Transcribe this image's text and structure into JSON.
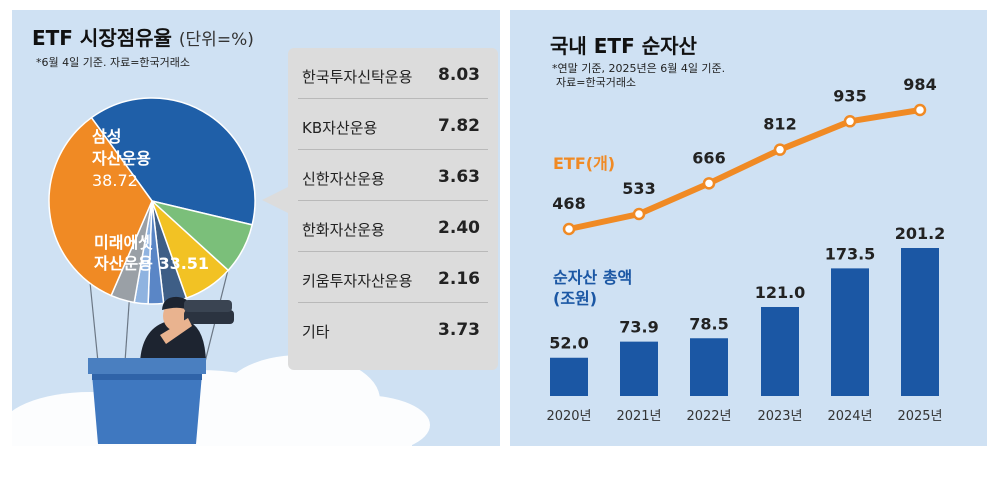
{
  "colors": {
    "background_left": "#cfe1f3",
    "background_right": "#cfe1f3",
    "samsung": "#1f5fa8",
    "mirae": "#f08a24",
    "korea_invest": "#7bbf7a",
    "kb": "#f2c224",
    "shinhan": "#3e5e86",
    "hanwha": "#5a86c6",
    "kiwoom": "#8fb3e0",
    "others": "#9aa0a6",
    "etf_line": "#f08a24",
    "bar": "#1b57a4",
    "line_label": "#f08a24",
    "bar_label": "#1b57a4",
    "list_bg": "#dcdcdc"
  },
  "left": {
    "title": "ETF 시장점유율",
    "unit": "(단위=%)",
    "note": "*6월 4일 기준. 자료=한국거래소"
  },
  "right": {
    "title": "국내 ETF 순자산",
    "note_line1": "*연말 기준, 2025년은 6월 4일 기준.",
    "note_line2": "자료=한국거래소",
    "line_series_label": "ETF(개)",
    "bar_series_label_1": "순자산 총액",
    "bar_series_label_2": "(조원)"
  },
  "chart_data": [
    {
      "type": "pie",
      "title": "ETF 시장점유율",
      "unit": "(단위=%)",
      "slices": [
        {
          "label": "삼성자산운용",
          "value": 38.72,
          "color": "#1f5fa8"
        },
        {
          "label": "한국투자신탁운용",
          "value": 8.03,
          "color": "#7bbf7a"
        },
        {
          "label": "KB자산운용",
          "value": 7.82,
          "color": "#f2c224"
        },
        {
          "label": "신한자산운용",
          "value": 3.63,
          "color": "#3e5e86"
        },
        {
          "label": "한화자산운용",
          "value": 2.4,
          "color": "#5a86c6"
        },
        {
          "label": "키움투자자산운용",
          "value": 2.16,
          "color": "#8fb3e0"
        },
        {
          "label": "기타",
          "value": 3.73,
          "color": "#9aa0a6"
        },
        {
          "label": "미래에셋자산운용",
          "value": 33.51,
          "color": "#f08a24"
        }
      ],
      "on_chart_labels": [
        {
          "line1": "삼성",
          "line2": "자산운용",
          "value_text": "38.72"
        },
        {
          "line1": "미래에셋",
          "line2": "자산운용 33.51"
        }
      ],
      "list": [
        {
          "label": "한국투자신탁운용",
          "value_text": "8.03"
        },
        {
          "label": "KB자산운용",
          "value_text": "7.82"
        },
        {
          "label": "신한자산운용",
          "value_text": "3.63"
        },
        {
          "label": "한화자산운용",
          "value_text": "2.40"
        },
        {
          "label": "키움투자자산운용",
          "value_text": "2.16"
        },
        {
          "label": "기타",
          "value_text": "3.73"
        }
      ]
    },
    {
      "type": "bar",
      "title": "국내 ETF 순자산",
      "categories": [
        "2020년",
        "2021년",
        "2022년",
        "2023년",
        "2024년",
        "2025년"
      ],
      "series": [
        {
          "name": "순자산 총액 (조원)",
          "type": "bar",
          "values": [
            52.0,
            73.9,
            78.5,
            121.0,
            173.5,
            201.2
          ],
          "labels": [
            "52.0",
            "73.9",
            "78.5",
            "121.0",
            "173.5",
            "201.2"
          ]
        },
        {
          "name": "ETF(개)",
          "type": "line",
          "values": [
            468,
            533,
            666,
            812,
            935,
            984
          ],
          "labels": [
            "468",
            "533",
            "666",
            "812",
            "935",
            "984"
          ]
        }
      ],
      "ylim_bar": [
        0,
        201.2
      ],
      "ylim_line": [
        468,
        984
      ],
      "grid": false
    }
  ]
}
